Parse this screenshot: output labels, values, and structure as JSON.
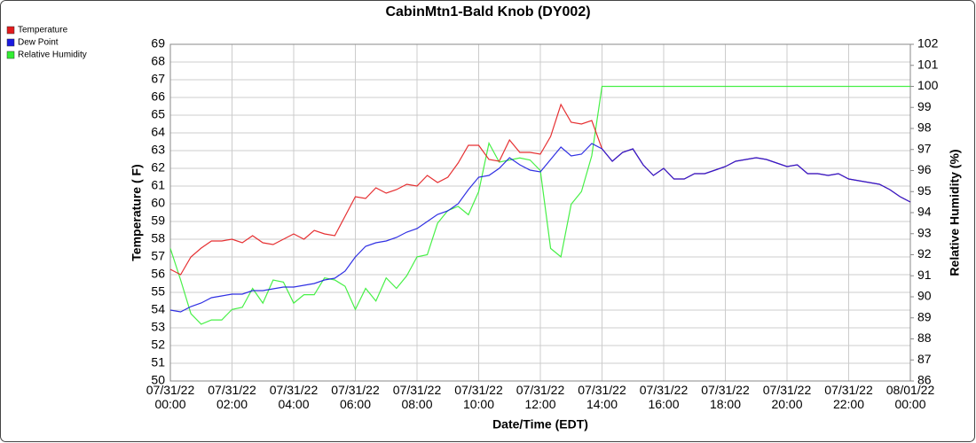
{
  "chart_data": {
    "type": "line",
    "title": "CabinMtn1-Bald Knob (DY002)",
    "xlabel": "Date/Time (EDT)",
    "ylabel": "Temperature ( F)",
    "y2label": "Relative Humidity (%)",
    "x": [
      "07/31/22 00:00",
      "07/31/22 00:20",
      "07/31/22 00:40",
      "07/31/22 01:00",
      "07/31/22 01:20",
      "07/31/22 01:40",
      "07/31/22 02:00",
      "07/31/22 02:20",
      "07/31/22 02:40",
      "07/31/22 03:00",
      "07/31/22 03:20",
      "07/31/22 03:40",
      "07/31/22 04:00",
      "07/31/22 04:20",
      "07/31/22 04:40",
      "07/31/22 05:00",
      "07/31/22 05:20",
      "07/31/22 05:40",
      "07/31/22 06:00",
      "07/31/22 06:20",
      "07/31/22 06:40",
      "07/31/22 07:00",
      "07/31/22 07:20",
      "07/31/22 07:40",
      "07/31/22 08:00",
      "07/31/22 08:20",
      "07/31/22 08:40",
      "07/31/22 09:00",
      "07/31/22 09:20",
      "07/31/22 09:40",
      "07/31/22 10:00",
      "07/31/22 10:20",
      "07/31/22 10:40",
      "07/31/22 11:00",
      "07/31/22 11:20",
      "07/31/22 11:40",
      "07/31/22 12:00",
      "07/31/22 12:20",
      "07/31/22 12:40",
      "07/31/22 13:00",
      "07/31/22 13:20",
      "07/31/22 13:40",
      "07/31/22 14:00",
      "07/31/22 14:20",
      "07/31/22 14:40",
      "07/31/22 15:00",
      "07/31/22 15:20",
      "07/31/22 15:40",
      "07/31/22 16:00",
      "07/31/22 16:20",
      "07/31/22 16:40",
      "07/31/22 17:00",
      "07/31/22 17:20",
      "07/31/22 17:40",
      "07/31/22 18:00",
      "07/31/22 18:20",
      "07/31/22 18:40",
      "07/31/22 19:00",
      "07/31/22 19:20",
      "07/31/22 19:40",
      "07/31/22 20:00",
      "07/31/22 20:20",
      "07/31/22 20:40",
      "07/31/22 21:00",
      "07/31/22 21:20",
      "07/31/22 21:40",
      "07/31/22 22:00",
      "07/31/22 22:20",
      "07/31/22 22:40",
      "07/31/22 23:00",
      "07/31/22 23:20",
      "07/31/22 23:40",
      "08/01/22 00:00"
    ],
    "series": [
      {
        "name": "Temperature",
        "color": "#e31a1c",
        "values": [
          56.3,
          56.0,
          57.0,
          57.5,
          57.9,
          57.9,
          58.0,
          57.8,
          58.2,
          57.8,
          57.7,
          58.0,
          58.3,
          58.0,
          58.5,
          58.3,
          58.2,
          59.3,
          60.4,
          60.3,
          60.9,
          60.6,
          60.8,
          61.1,
          61.0,
          61.6,
          61.2,
          61.5,
          62.3,
          63.3,
          63.3,
          62.5,
          62.4,
          63.6,
          62.9,
          62.9,
          62.8,
          63.8,
          65.6,
          64.6,
          64.5,
          64.7,
          63.1,
          62.4,
          62.9,
          63.1,
          62.2,
          61.6,
          62.0,
          61.4,
          61.4,
          61.7,
          61.7,
          61.9,
          62.1,
          62.4,
          62.5,
          62.6,
          62.5,
          62.3,
          62.1,
          62.2,
          61.7,
          61.7,
          61.6,
          61.7,
          61.4,
          61.3,
          61.2,
          61.1,
          60.8,
          60.4,
          60.1
        ]
      },
      {
        "name": "Dew Point",
        "color": "#1a1ae0",
        "values": [
          54.0,
          53.9,
          54.2,
          54.4,
          54.7,
          54.8,
          54.9,
          54.9,
          55.1,
          55.1,
          55.2,
          55.3,
          55.3,
          55.4,
          55.5,
          55.7,
          55.8,
          56.2,
          57.0,
          57.6,
          57.8,
          57.9,
          58.1,
          58.4,
          58.6,
          59.0,
          59.4,
          59.6,
          60.0,
          60.8,
          61.5,
          61.6,
          62.0,
          62.6,
          62.2,
          61.9,
          61.8,
          62.5,
          63.2,
          62.7,
          62.8,
          63.4,
          63.1,
          62.4,
          62.9,
          63.1,
          62.2,
          61.6,
          62.0,
          61.4,
          61.4,
          61.7,
          61.7,
          61.9,
          62.1,
          62.4,
          62.5,
          62.6,
          62.5,
          62.3,
          62.1,
          62.2,
          61.7,
          61.7,
          61.6,
          61.7,
          61.4,
          61.3,
          61.2,
          61.1,
          60.8,
          60.4,
          60.1
        ]
      },
      {
        "name": "Relative Humidity",
        "color": "#33ee33",
        "axis": "y2",
        "values": [
          92.3,
          90.8,
          89.2,
          88.7,
          88.9,
          88.9,
          89.4,
          89.5,
          90.4,
          89.7,
          90.8,
          90.7,
          89.7,
          90.1,
          90.1,
          90.9,
          90.8,
          90.5,
          89.4,
          90.4,
          89.8,
          90.9,
          90.4,
          91.0,
          91.9,
          92.0,
          93.5,
          94.1,
          94.3,
          93.9,
          95.0,
          97.3,
          96.4,
          96.5,
          96.6,
          96.5,
          96.0,
          92.3,
          91.9,
          94.4,
          95.0,
          96.7,
          100,
          100,
          100,
          100,
          100,
          100,
          100,
          100,
          100,
          100,
          100,
          100,
          100,
          100,
          100,
          100,
          100,
          100,
          100,
          100,
          100,
          100,
          100,
          100,
          100,
          100,
          100,
          100,
          100,
          100,
          100
        ]
      }
    ],
    "xlim": [
      "07/31/22 00:00",
      "08/01/22 00:00"
    ],
    "xticks": [
      "07/31/22 00:00",
      "07/31/22 02:00",
      "07/31/22 04:00",
      "07/31/22 06:00",
      "07/31/22 08:00",
      "07/31/22 10:00",
      "07/31/22 12:00",
      "07/31/22 14:00",
      "07/31/22 16:00",
      "07/31/22 18:00",
      "07/31/22 20:00",
      "07/31/22 22:00",
      "08/01/22 00:00"
    ],
    "ylim": [
      50,
      69
    ],
    "yticks": [
      50,
      51,
      52,
      53,
      54,
      55,
      56,
      57,
      58,
      59,
      60,
      61,
      62,
      63,
      64,
      65,
      66,
      67,
      68,
      69
    ],
    "y2lim": [
      86,
      102
    ],
    "y2ticks": [
      86,
      87,
      88,
      89,
      90,
      91,
      92,
      93,
      94,
      95,
      96,
      97,
      98,
      99,
      100,
      101,
      102
    ],
    "grid": true,
    "legend": "upper-left"
  }
}
